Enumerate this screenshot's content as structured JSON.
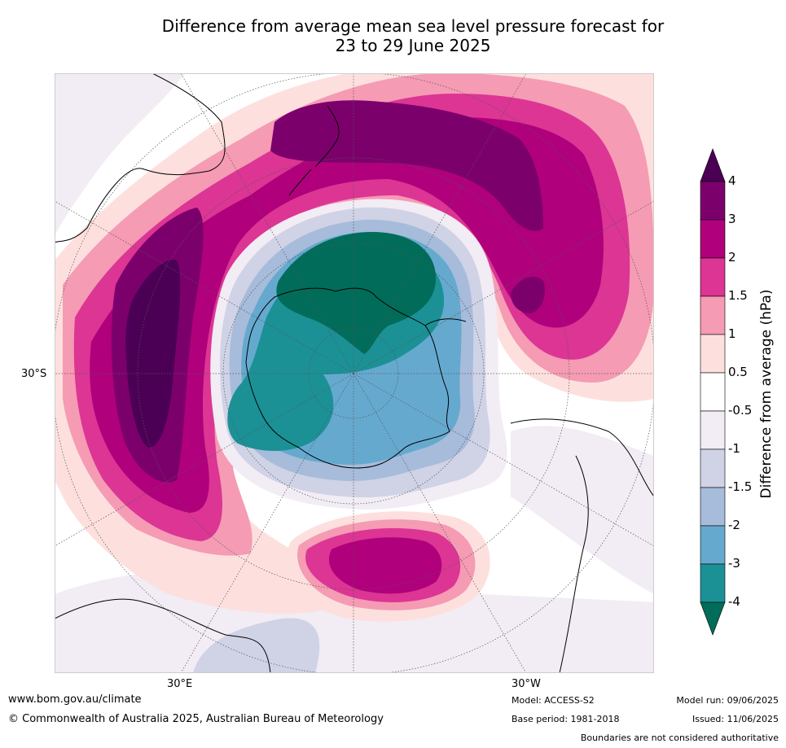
{
  "title_line1": "Difference from average mean sea level pressure forecast for",
  "title_line2": "23 to 29 June 2025",
  "map": {
    "projection": "south-polar stereographic",
    "lat_label": "30°S",
    "lon_labels": [
      "30°E",
      "30°W"
    ],
    "colors": {
      "p4plus": "#4b0055",
      "p3": "#7c006c",
      "p2": "#b0007c",
      "p1_5": "#dc3594",
      "p1": "#f59bb4",
      "p0_5": "#fde0de",
      "zero": "#ffffff",
      "m0_5": "#f2ecf4",
      "m1": "#d0d2e6",
      "m1_5": "#a6bcda",
      "m2": "#66a9cf",
      "m3": "#1b9196",
      "m4minus": "#016c59"
    }
  },
  "colorbar": {
    "title": "Difference from average (hPa)",
    "ticks": [
      "4",
      "3",
      "2",
      "1.5",
      "1",
      "0.5",
      "-0.5",
      "-1",
      "-1.5",
      "-2",
      "-3",
      "-4"
    ],
    "bands": [
      "#7c006c",
      "#b0007c",
      "#dc3594",
      "#f59bb4",
      "#fde0de",
      "#ffffff",
      "#f2ecf4",
      "#d0d2e6",
      "#a6bcda",
      "#66a9cf",
      "#1b9196"
    ],
    "top_arrow": "#4b0055",
    "bottom_arrow": "#016c59"
  },
  "footer": {
    "website": "www.bom.gov.au/climate",
    "copyright": "© Commonwealth of Australia 2025, Australian Bureau of Meteorology",
    "model": "Model: ACCESS-S2",
    "base_period": "Base period: 1981-2018",
    "model_run": "Model run: 09/06/2025",
    "issued": "Issued: 11/06/2025",
    "disclaimer": "Boundaries are not considered authoritative"
  }
}
